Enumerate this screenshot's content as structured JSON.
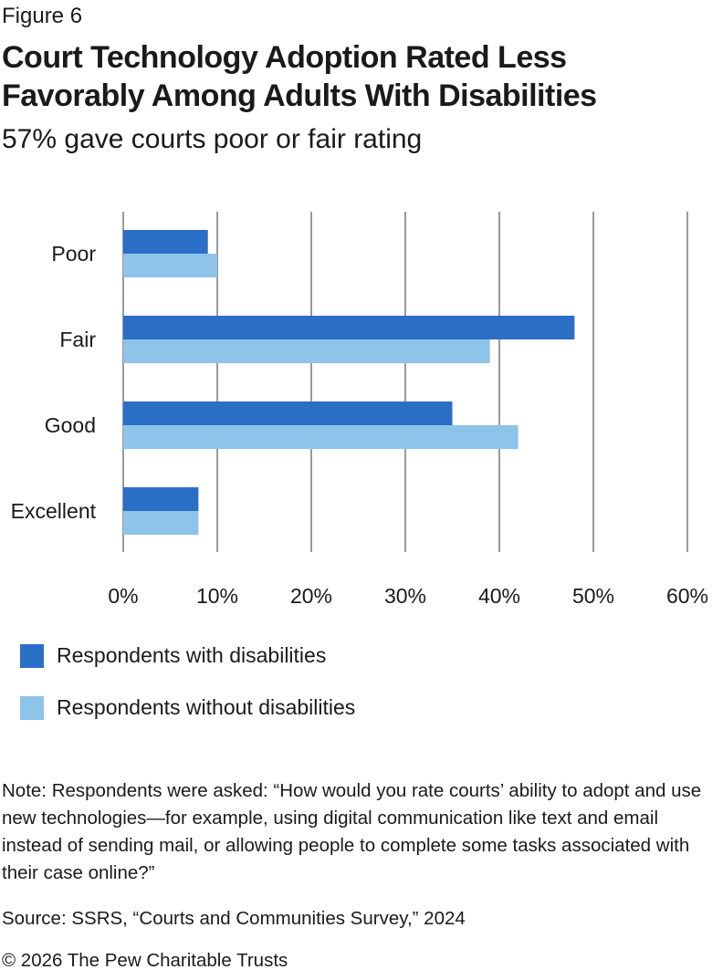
{
  "figure_label": "Figure 6",
  "title_lines": [
    "Court Technology Adoption Rated Less",
    "Favorably Among Adults With Disabilities"
  ],
  "subtitle": "57% gave courts poor or fair rating",
  "colors": {
    "with": "#2b6ec6",
    "without": "#8ec3ea",
    "grid": "#9a9a9a"
  },
  "chart_data": {
    "type": "bar",
    "orientation": "horizontal",
    "categories": [
      "Poor",
      "Fair",
      "Good",
      "Excellent"
    ],
    "series": [
      {
        "name": "Respondents with disabilities",
        "values": [
          9,
          48,
          35,
          8
        ]
      },
      {
        "name": "Respondents without disabilities",
        "values": [
          10,
          39,
          42,
          8
        ]
      }
    ],
    "xlim": [
      0,
      60
    ],
    "xticks": [
      0,
      10,
      20,
      30,
      40,
      50,
      60
    ],
    "tick_labels": [
      "0%",
      "10%",
      "20%",
      "30%",
      "40%",
      "50%",
      "60%"
    ],
    "grid": true,
    "legend_position": "bottom-left"
  },
  "legend": [
    {
      "label": "Respondents with disabilities"
    },
    {
      "label": "Respondents without disabilities"
    }
  ],
  "note": "Note: Respondents were asked: “How would you rate courts’ ability to adopt and use new technologies—for example, using digital communication like text and email instead of sending mail, or allowing people to complete some tasks associated with their case online?”",
  "source": "Source: SSRS, “Courts and Communities Survey,” 2024",
  "copyright": "© 2026 The Pew Charitable Trusts"
}
